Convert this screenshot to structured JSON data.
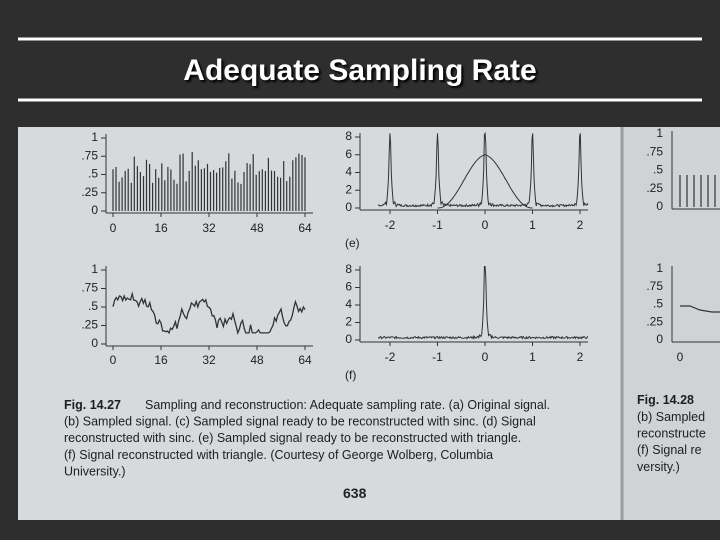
{
  "header": {
    "title": "Adequate Sampling Rate"
  },
  "page": {
    "panels": [
      {
        "yticks": [
          "1",
          ".75",
          ".5",
          ".25",
          "0"
        ],
        "xticks": [
          "0",
          "16",
          "32",
          "48",
          "64"
        ]
      },
      {
        "yticks": [
          "8",
          "6",
          "4",
          "2",
          "0"
        ],
        "xticks": [
          "-2",
          "-1",
          "0",
          "1",
          "2"
        ],
        "label": "(e)"
      },
      {
        "yticks": [
          "1",
          ".75",
          ".5",
          ".25",
          "0"
        ],
        "xticks": [
          "0",
          "16",
          "32",
          "48",
          "64"
        ]
      },
      {
        "yticks": [
          "8",
          "6",
          "4",
          "2",
          "0"
        ],
        "xticks": [
          "-2",
          "-1",
          "0",
          "1",
          "2"
        ],
        "label": "(f)"
      }
    ],
    "caption": {
      "figure": "Fig. 14.27",
      "lines": [
        "Sampling and reconstruction: Adequate sampling rate. (a) Original signal.",
        "(b) Sampled signal. (c) Sampled signal ready to be reconstructed with sinc. (d) Signal",
        "reconstructed with sinc. (e) Sampled signal ready to be reconstructed with triangle.",
        "(f) Signal reconstructed with triangle. (Courtesy of George Wolberg, Columbia",
        "University.)"
      ]
    },
    "page_number": "638",
    "side": {
      "figure": "Fig. 14.28",
      "lines": [
        "(b) Sampled",
        "reconstructe",
        "(f) Signal re",
        "versity.)"
      ],
      "top_yticks": [
        "1",
        ".75",
        ".5",
        ".25",
        "0"
      ],
      "bottom_yticks": [
        "1",
        ".75",
        ".5",
        ".25",
        "0"
      ],
      "xtick": "0"
    }
  }
}
